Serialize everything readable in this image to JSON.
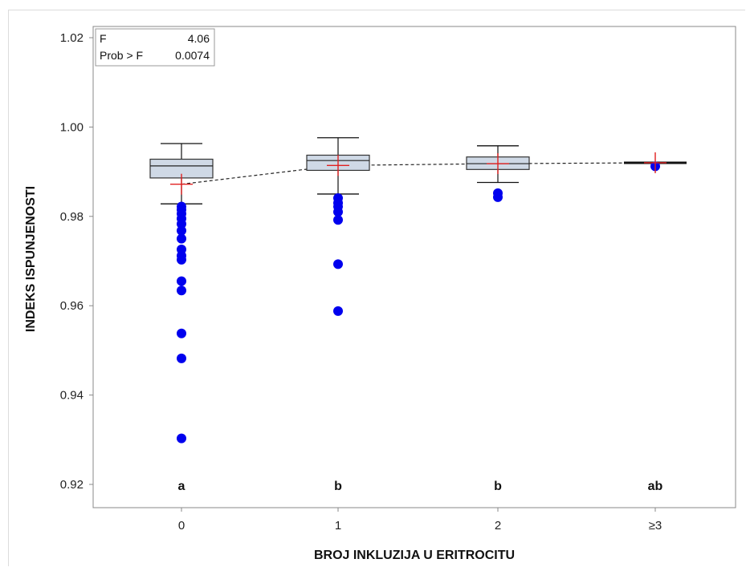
{
  "chart_data": {
    "type": "box",
    "xlabel": "BROJ INKLUZIJA U ERITROCITU",
    "ylabel": "INDEKS ISPUNJENOSTI",
    "categories": [
      "0",
      "1",
      "2",
      "≥3"
    ],
    "ylim": [
      0.918,
      1.022
    ],
    "yticks": [
      0.92,
      0.94,
      0.96,
      0.98,
      1.0,
      1.02
    ],
    "ytick_labels": [
      "0.92",
      "0.94",
      "0.96",
      "0.98",
      "1.00",
      "1.02"
    ],
    "grid": false,
    "stats": {
      "f_label": "F",
      "f_value": "4.06",
      "p_label": "Prob > F",
      "p_value": "0.0074"
    },
    "groups": [
      {
        "category": "0",
        "letter": "a",
        "whisker_low": 0.9828,
        "q1": 0.9886,
        "median": 0.9913,
        "q3": 0.9928,
        "whisker_high": 0.9963,
        "mean": 0.9872,
        "outliers": [
          0.9822,
          0.9815,
          0.9806,
          0.9795,
          0.9783,
          0.9768,
          0.975,
          0.9726,
          0.9712,
          0.9703,
          0.9655,
          0.9634,
          0.9538,
          0.9482,
          0.9303
        ]
      },
      {
        "category": "1",
        "letter": "b",
        "whisker_low": 0.985,
        "q1": 0.9903,
        "median": 0.9925,
        "q3": 0.9937,
        "whisker_high": 0.9976,
        "mean": 0.9914,
        "outliers": [
          0.9841,
          0.983,
          0.9822,
          0.981,
          0.9792,
          0.9693,
          0.9588
        ]
      },
      {
        "category": "2",
        "letter": "b",
        "whisker_low": 0.9876,
        "q1": 0.9905,
        "median": 0.9918,
        "q3": 0.9933,
        "whisker_high": 0.9958,
        "mean": 0.9918,
        "outliers": [
          0.9852,
          0.9843
        ]
      },
      {
        "category": "≥3",
        "letter": "ab",
        "whisker_low": 0.992,
        "q1": 0.992,
        "median": 0.992,
        "q3": 0.992,
        "whisker_high": 0.992,
        "mean": 0.992,
        "outliers": [
          0.9912
        ]
      }
    ],
    "colors": {
      "box_fill": "#cfd9e6",
      "box_stroke": "#333333",
      "outlier": "#0000ee",
      "mean_marker": "#e02020",
      "mean_line": "#222222"
    }
  }
}
